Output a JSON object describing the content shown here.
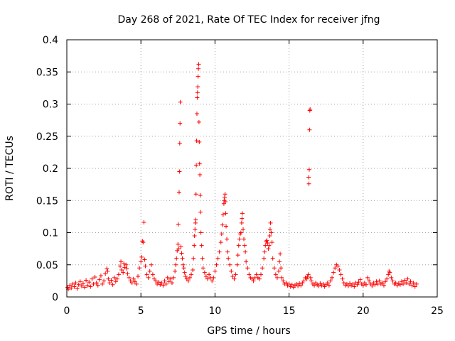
{
  "chart_data": {
    "type": "scatter",
    "title": "Day 268 of 2021, Rate Of TEC Index for receiver jfng",
    "xlabel": "GPS time / hours",
    "ylabel": "ROTI / TECUs",
    "xlim": [
      0,
      25
    ],
    "ylim": [
      0,
      0.4
    ],
    "xticks": [
      0,
      5,
      10,
      15,
      20,
      25
    ],
    "xtick_labels": [
      "0",
      "5",
      "10",
      "15",
      "20",
      "25"
    ],
    "yticks": [
      0,
      0.05,
      0.1,
      0.15,
      0.2,
      0.25,
      0.3,
      0.35,
      0.4
    ],
    "ytick_labels": [
      "0",
      "0.05",
      "0.1",
      "0.15",
      "0.2",
      "0.25",
      "0.3",
      "0.35",
      "0.4"
    ],
    "grid": true,
    "marker": "+",
    "color": "#ff0000",
    "series": [
      {
        "name": "ROTI",
        "points": [
          [
            0.05,
            0.015
          ],
          [
            0.1,
            0.012
          ],
          [
            0.2,
            0.018
          ],
          [
            0.3,
            0.014
          ],
          [
            0.4,
            0.02
          ],
          [
            0.5,
            0.016
          ],
          [
            0.6,
            0.022
          ],
          [
            0.7,
            0.013
          ],
          [
            0.8,
            0.019
          ],
          [
            0.9,
            0.024
          ],
          [
            1.0,
            0.017
          ],
          [
            1.1,
            0.021
          ],
          [
            1.2,
            0.015
          ],
          [
            1.3,
            0.026
          ],
          [
            1.4,
            0.018
          ],
          [
            1.5,
            0.023
          ],
          [
            1.6,
            0.016
          ],
          [
            1.7,
            0.028
          ],
          [
            1.8,
            0.02
          ],
          [
            1.9,
            0.031
          ],
          [
            2.0,
            0.022
          ],
          [
            2.1,
            0.018
          ],
          [
            2.2,
            0.027
          ],
          [
            2.3,
            0.033
          ],
          [
            2.4,
            0.02
          ],
          [
            2.5,
            0.025
          ],
          [
            2.6,
            0.036
          ],
          [
            2.7,
            0.044
          ],
          [
            2.75,
            0.04
          ],
          [
            2.8,
            0.028
          ],
          [
            2.9,
            0.022
          ],
          [
            3.0,
            0.026
          ],
          [
            3.1,
            0.019
          ],
          [
            3.2,
            0.03
          ],
          [
            3.3,
            0.024
          ],
          [
            3.4,
            0.028
          ],
          [
            3.5,
            0.035
          ],
          [
            3.6,
            0.048
          ],
          [
            3.65,
            0.055
          ],
          [
            3.7,
            0.042
          ],
          [
            3.8,
            0.038
          ],
          [
            3.85,
            0.052
          ],
          [
            3.9,
            0.046
          ],
          [
            4.0,
            0.05
          ],
          [
            4.05,
            0.044
          ],
          [
            4.1,
            0.036
          ],
          [
            4.2,
            0.03
          ],
          [
            4.3,
            0.025
          ],
          [
            4.4,
            0.022
          ],
          [
            4.5,
            0.028
          ],
          [
            4.6,
            0.024
          ],
          [
            4.7,
            0.02
          ],
          [
            4.8,
            0.032
          ],
          [
            4.9,
            0.045
          ],
          [
            5.0,
            0.055
          ],
          [
            5.05,
            0.062
          ],
          [
            5.1,
            0.087
          ],
          [
            5.15,
            0.085
          ],
          [
            5.2,
            0.116
          ],
          [
            5.25,
            0.058
          ],
          [
            5.3,
            0.048
          ],
          [
            5.4,
            0.035
          ],
          [
            5.5,
            0.03
          ],
          [
            5.6,
            0.04
          ],
          [
            5.7,
            0.05
          ],
          [
            5.8,
            0.035
          ],
          [
            5.9,
            0.028
          ],
          [
            6.0,
            0.025
          ],
          [
            6.1,
            0.02
          ],
          [
            6.2,
            0.023
          ],
          [
            6.3,
            0.019
          ],
          [
            6.4,
            0.022
          ],
          [
            6.5,
            0.018
          ],
          [
            6.6,
            0.025
          ],
          [
            6.7,
            0.02
          ],
          [
            6.8,
            0.03
          ],
          [
            6.9,
            0.024
          ],
          [
            7.0,
            0.028
          ],
          [
            7.1,
            0.022
          ],
          [
            7.2,
            0.03
          ],
          [
            7.3,
            0.04
          ],
          [
            7.35,
            0.05
          ],
          [
            7.4,
            0.06
          ],
          [
            7.45,
            0.072
          ],
          [
            7.5,
            0.082
          ],
          [
            7.52,
            0.113
          ],
          [
            7.55,
            0.075
          ],
          [
            7.58,
            0.163
          ],
          [
            7.6,
            0.195
          ],
          [
            7.62,
            0.239
          ],
          [
            7.64,
            0.27
          ],
          [
            7.66,
            0.303
          ],
          [
            7.7,
            0.078
          ],
          [
            7.75,
            0.068
          ],
          [
            7.8,
            0.06
          ],
          [
            7.85,
            0.05
          ],
          [
            7.9,
            0.045
          ],
          [
            7.95,
            0.038
          ],
          [
            8.0,
            0.032
          ],
          [
            8.1,
            0.028
          ],
          [
            8.2,
            0.025
          ],
          [
            8.3,
            0.03
          ],
          [
            8.4,
            0.035
          ],
          [
            8.5,
            0.042
          ],
          [
            8.55,
            0.06
          ],
          [
            8.6,
            0.08
          ],
          [
            8.62,
            0.095
          ],
          [
            8.65,
            0.105
          ],
          [
            8.68,
            0.115
          ],
          [
            8.7,
            0.12
          ],
          [
            8.72,
            0.16
          ],
          [
            8.74,
            0.205
          ],
          [
            8.76,
            0.243
          ],
          [
            8.78,
            0.285
          ],
          [
            8.8,
            0.31
          ],
          [
            8.82,
            0.318
          ],
          [
            8.84,
            0.327
          ],
          [
            8.86,
            0.343
          ],
          [
            8.88,
            0.355
          ],
          [
            8.9,
            0.362
          ],
          [
            8.92,
            0.272
          ],
          [
            8.94,
            0.241
          ],
          [
            8.96,
            0.207
          ],
          [
            8.98,
            0.19
          ],
          [
            9.0,
            0.158
          ],
          [
            9.02,
            0.132
          ],
          [
            9.05,
            0.1
          ],
          [
            9.1,
            0.08
          ],
          [
            9.15,
            0.06
          ],
          [
            9.2,
            0.045
          ],
          [
            9.3,
            0.038
          ],
          [
            9.4,
            0.032
          ],
          [
            9.5,
            0.028
          ],
          [
            9.6,
            0.035
          ],
          [
            9.7,
            0.03
          ],
          [
            9.8,
            0.025
          ],
          [
            9.9,
            0.03
          ],
          [
            10.0,
            0.04
          ],
          [
            10.1,
            0.05
          ],
          [
            10.2,
            0.06
          ],
          [
            10.3,
            0.07
          ],
          [
            10.4,
            0.085
          ],
          [
            10.45,
            0.098
          ],
          [
            10.5,
            0.112
          ],
          [
            10.55,
            0.128
          ],
          [
            10.6,
            0.145
          ],
          [
            10.62,
            0.15
          ],
          [
            10.65,
            0.155
          ],
          [
            10.68,
            0.16
          ],
          [
            10.7,
            0.148
          ],
          [
            10.72,
            0.13
          ],
          [
            10.75,
            0.11
          ],
          [
            10.8,
            0.09
          ],
          [
            10.85,
            0.07
          ],
          [
            10.9,
            0.06
          ],
          [
            11.0,
            0.05
          ],
          [
            11.1,
            0.04
          ],
          [
            11.2,
            0.032
          ],
          [
            11.3,
            0.028
          ],
          [
            11.4,
            0.035
          ],
          [
            11.5,
            0.05
          ],
          [
            11.55,
            0.065
          ],
          [
            11.6,
            0.08
          ],
          [
            11.65,
            0.09
          ],
          [
            11.7,
            0.098
          ],
          [
            11.75,
            0.1
          ],
          [
            11.8,
            0.115
          ],
          [
            11.82,
            0.122
          ],
          [
            11.85,
            0.13
          ],
          [
            11.9,
            0.105
          ],
          [
            11.95,
            0.09
          ],
          [
            12.0,
            0.08
          ],
          [
            12.05,
            0.07
          ],
          [
            12.1,
            0.055
          ],
          [
            12.2,
            0.045
          ],
          [
            12.3,
            0.035
          ],
          [
            12.4,
            0.03
          ],
          [
            12.5,
            0.028
          ],
          [
            12.6,
            0.025
          ],
          [
            12.7,
            0.03
          ],
          [
            12.8,
            0.035
          ],
          [
            12.9,
            0.03
          ],
          [
            13.0,
            0.028
          ],
          [
            13.1,
            0.035
          ],
          [
            13.2,
            0.045
          ],
          [
            13.3,
            0.06
          ],
          [
            13.35,
            0.07
          ],
          [
            13.4,
            0.08
          ],
          [
            13.45,
            0.086
          ],
          [
            13.5,
            0.088
          ],
          [
            13.55,
            0.084
          ],
          [
            13.6,
            0.075
          ],
          [
            13.65,
            0.08
          ],
          [
            13.7,
            0.095
          ],
          [
            13.72,
            0.105
          ],
          [
            13.75,
            0.115
          ],
          [
            13.8,
            0.1
          ],
          [
            13.85,
            0.085
          ],
          [
            13.9,
            0.06
          ],
          [
            14.0,
            0.045
          ],
          [
            14.1,
            0.035
          ],
          [
            14.2,
            0.03
          ],
          [
            14.3,
            0.04
          ],
          [
            14.35,
            0.055
          ],
          [
            14.4,
            0.067
          ],
          [
            14.45,
            0.045
          ],
          [
            14.5,
            0.03
          ],
          [
            14.6,
            0.025
          ],
          [
            14.7,
            0.02
          ],
          [
            14.8,
            0.022
          ],
          [
            14.9,
            0.018
          ],
          [
            15.0,
            0.02
          ],
          [
            15.1,
            0.016
          ],
          [
            15.2,
            0.019
          ],
          [
            15.3,
            0.015
          ],
          [
            15.4,
            0.018
          ],
          [
            15.5,
            0.02
          ],
          [
            15.6,
            0.017
          ],
          [
            15.7,
            0.021
          ],
          [
            15.8,
            0.018
          ],
          [
            15.9,
            0.022
          ],
          [
            16.0,
            0.025
          ],
          [
            16.1,
            0.03
          ],
          [
            16.2,
            0.028
          ],
          [
            16.25,
            0.032
          ],
          [
            16.3,
            0.035
          ],
          [
            16.32,
            0.186
          ],
          [
            16.34,
            0.176
          ],
          [
            16.36,
            0.198
          ],
          [
            16.38,
            0.26
          ],
          [
            16.4,
            0.29
          ],
          [
            16.42,
            0.292
          ],
          [
            16.45,
            0.03
          ],
          [
            16.5,
            0.025
          ],
          [
            16.6,
            0.02
          ],
          [
            16.7,
            0.018
          ],
          [
            16.8,
            0.022
          ],
          [
            16.9,
            0.019
          ],
          [
            17.0,
            0.017
          ],
          [
            17.1,
            0.021
          ],
          [
            17.2,
            0.018
          ],
          [
            17.3,
            0.02
          ],
          [
            17.4,
            0.016
          ],
          [
            17.5,
            0.019
          ],
          [
            17.6,
            0.022
          ],
          [
            17.7,
            0.018
          ],
          [
            17.8,
            0.025
          ],
          [
            17.9,
            0.03
          ],
          [
            18.0,
            0.038
          ],
          [
            18.1,
            0.045
          ],
          [
            18.2,
            0.05
          ],
          [
            18.3,
            0.048
          ],
          [
            18.4,
            0.042
          ],
          [
            18.5,
            0.035
          ],
          [
            18.6,
            0.028
          ],
          [
            18.7,
            0.022
          ],
          [
            18.8,
            0.018
          ],
          [
            18.9,
            0.02
          ],
          [
            19.0,
            0.017
          ],
          [
            19.1,
            0.021
          ],
          [
            19.2,
            0.018
          ],
          [
            19.3,
            0.02
          ],
          [
            19.4,
            0.016
          ],
          [
            19.5,
            0.022
          ],
          [
            19.6,
            0.019
          ],
          [
            19.7,
            0.023
          ],
          [
            19.8,
            0.027
          ],
          [
            19.9,
            0.02
          ],
          [
            20.0,
            0.018
          ],
          [
            20.1,
            0.022
          ],
          [
            20.2,
            0.019
          ],
          [
            20.3,
            0.03
          ],
          [
            20.4,
            0.025
          ],
          [
            20.5,
            0.02
          ],
          [
            20.6,
            0.017
          ],
          [
            20.7,
            0.022
          ],
          [
            20.8,
            0.019
          ],
          [
            20.9,
            0.024
          ],
          [
            21.0,
            0.02
          ],
          [
            21.1,
            0.025
          ],
          [
            21.2,
            0.02
          ],
          [
            21.3,
            0.022
          ],
          [
            21.4,
            0.018
          ],
          [
            21.5,
            0.024
          ],
          [
            21.6,
            0.028
          ],
          [
            21.7,
            0.035
          ],
          [
            21.75,
            0.04
          ],
          [
            21.8,
            0.038
          ],
          [
            21.9,
            0.03
          ],
          [
            22.0,
            0.025
          ],
          [
            22.1,
            0.02
          ],
          [
            22.2,
            0.022
          ],
          [
            22.3,
            0.018
          ],
          [
            22.4,
            0.021
          ],
          [
            22.5,
            0.019
          ],
          [
            22.6,
            0.024
          ],
          [
            22.7,
            0.02
          ],
          [
            22.8,
            0.026
          ],
          [
            22.9,
            0.022
          ],
          [
            23.0,
            0.028
          ],
          [
            23.1,
            0.02
          ],
          [
            23.2,
            0.024
          ],
          [
            23.3,
            0.018
          ],
          [
            23.4,
            0.022
          ],
          [
            23.5,
            0.016
          ],
          [
            23.6,
            0.02
          ]
        ]
      }
    ]
  }
}
